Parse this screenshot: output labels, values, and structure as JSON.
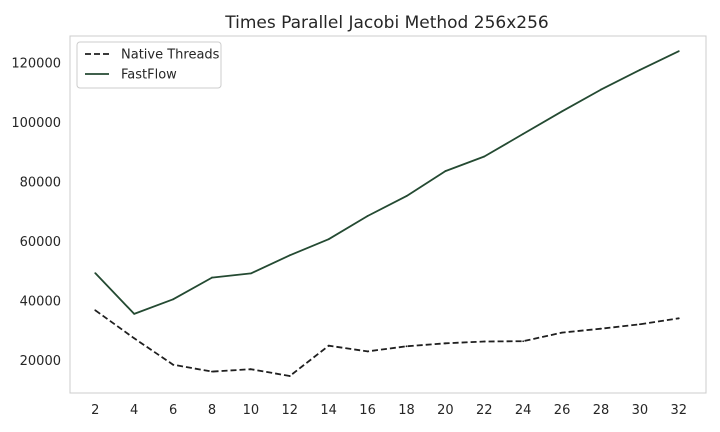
{
  "chart_data": {
    "type": "line",
    "title": "Times Parallel Jacobi Method 256x256",
    "xlabel": "",
    "ylabel": "",
    "x": [
      2,
      4,
      6,
      8,
      10,
      12,
      14,
      16,
      18,
      20,
      22,
      24,
      26,
      28,
      30,
      32
    ],
    "xlim": [
      0.7,
      33.4
    ],
    "ylim": [
      9000,
      129000
    ],
    "y_ticks": [
      20000,
      40000,
      60000,
      80000,
      100000,
      120000
    ],
    "grid": false,
    "legend_position": "top-left",
    "series": [
      {
        "name": "Native Threads",
        "style": "dashed",
        "color": "#1f1f1f",
        "values": [
          36800,
          27400,
          18500,
          16200,
          17000,
          14700,
          24900,
          23000,
          24700,
          25700,
          26300,
          26400,
          29300,
          30600,
          32100,
          34100
        ]
      },
      {
        "name": "FastFlow",
        "style": "solid",
        "color": "#244a32",
        "values": [
          49300,
          35600,
          40500,
          47800,
          49200,
          55300,
          60700,
          68500,
          75200,
          83600,
          88500,
          96100,
          103700,
          111000,
          117600,
          123900
        ]
      }
    ]
  }
}
